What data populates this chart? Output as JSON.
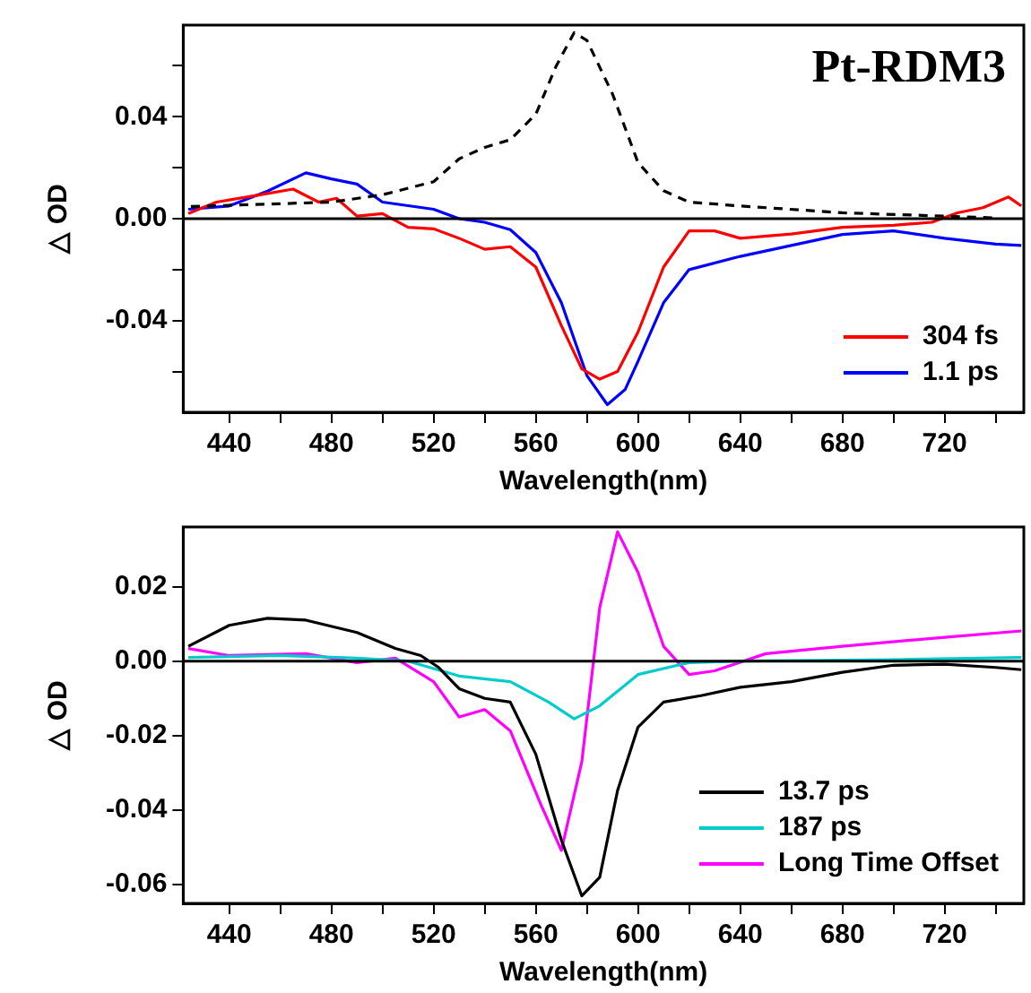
{
  "chart_data": [
    {
      "type": "line",
      "xlabel": "Wavelength(nm)",
      "ylabel": "△ OD",
      "annotations": [
        "Pt-RDM3"
      ],
      "xlim": [
        422,
        751
      ],
      "ylim": [
        -0.076,
        0.076
      ],
      "xticks": [
        440,
        {
          "value": 460,
          "label": null
        },
        480,
        {
          "value": 500,
          "label": null
        },
        520,
        {
          "value": 540,
          "label": null
        },
        560,
        {
          "value": 580,
          "label": null
        },
        600,
        {
          "value": 620,
          "label": null
        },
        640,
        {
          "value": 660,
          "label": null
        },
        680,
        {
          "value": 700,
          "label": null
        },
        720,
        {
          "value": 740,
          "label": null
        }
      ],
      "yticks": [
        {
          "value": -0.06,
          "label": null
        },
        {
          "value": -0.04,
          "label": "-0.04"
        },
        {
          "value": -0.02,
          "label": null
        },
        {
          "value": 0,
          "label": "0.00"
        },
        {
          "value": 0.02,
          "label": null
        },
        {
          "value": 0.04,
          "label": "0.04"
        },
        {
          "value": 0.06,
          "label": null
        }
      ],
      "grid": false,
      "legend": "bottom right",
      "marker": "none",
      "ref_lines": [
        {
          "axis": "y",
          "value": 0,
          "color": "#000000"
        }
      ],
      "series": [
        {
          "color": "#000000",
          "line_style": "dashed",
          "x": [
            425,
            480,
            500,
            520,
            530,
            540,
            550,
            560,
            568,
            575,
            580,
            590,
            600,
            610,
            620,
            640,
            680,
            720,
            740
          ],
          "values": [
            0.0048,
            0.0065,
            0.0094,
            0.0145,
            0.0235,
            0.028,
            0.031,
            0.041,
            0.06,
            0.073,
            0.07,
            0.049,
            0.022,
            0.011,
            0.0065,
            0.005,
            0.0023,
            0.001,
            0.0003
          ]
        },
        {
          "name": "304 fs",
          "color": "#ff0000",
          "x": [
            424,
            435,
            450,
            465,
            475,
            482,
            490,
            500,
            510,
            520,
            530,
            540,
            550,
            560,
            570,
            578,
            585,
            592,
            600,
            610,
            620,
            630,
            640,
            660,
            680,
            700,
            715,
            725,
            735,
            745,
            750
          ],
          "values": [
            0.002,
            0.0065,
            0.009,
            0.0116,
            0.0065,
            0.008,
            0.001,
            0.002,
            -0.0034,
            -0.004,
            -0.0077,
            -0.012,
            -0.011,
            -0.019,
            -0.042,
            -0.059,
            -0.063,
            -0.06,
            -0.0445,
            -0.019,
            -0.0048,
            -0.0048,
            -0.0077,
            -0.006,
            -0.0034,
            -0.0026,
            -0.0014,
            0.0023,
            0.0043,
            0.0085,
            0.005
          ]
        },
        {
          "name": "1.1 ps",
          "color": "#0000ff",
          "x": [
            424,
            440,
            455,
            470,
            480,
            490,
            500,
            520,
            530,
            540,
            550,
            560,
            570,
            580,
            588,
            595,
            600,
            610,
            620,
            640,
            660,
            680,
            700,
            720,
            740,
            750
          ],
          "values": [
            0.0037,
            0.005,
            0.0108,
            0.018,
            0.0156,
            0.0136,
            0.0065,
            0.0037,
            0,
            -0.0014,
            -0.0043,
            -0.0133,
            -0.033,
            -0.0616,
            -0.073,
            -0.067,
            -0.056,
            -0.033,
            -0.02,
            -0.0148,
            -0.0105,
            -0.0062,
            -0.0048,
            -0.0077,
            -0.01,
            -0.0105
          ]
        }
      ]
    },
    {
      "type": "line",
      "xlabel": "Wavelength(nm)",
      "ylabel": "△ OD",
      "xlim": [
        422,
        751
      ],
      "ylim": [
        -0.065,
        0.036
      ],
      "xticks": [
        440,
        {
          "value": 460,
          "label": null
        },
        480,
        {
          "value": 500,
          "label": null
        },
        520,
        {
          "value": 540,
          "label": null
        },
        560,
        {
          "value": 580,
          "label": null
        },
        600,
        {
          "value": 620,
          "label": null
        },
        640,
        {
          "value": 660,
          "label": null
        },
        680,
        {
          "value": 700,
          "label": null
        },
        720,
        {
          "value": 740,
          "label": null
        }
      ],
      "yticks": [
        {
          "value": -0.06,
          "label": "-0.06"
        },
        {
          "value": -0.04,
          "label": "-0.04"
        },
        {
          "value": -0.02,
          "label": "-0.02"
        },
        {
          "value": 0,
          "label": "0.00"
        },
        {
          "value": 0.02,
          "label": "0.02"
        }
      ],
      "grid": false,
      "legend": "bottom right",
      "marker": "none",
      "ref_lines": [
        {
          "axis": "y",
          "value": 0,
          "color": "#000000"
        }
      ],
      "series": [
        {
          "name": "13.7 ps",
          "color": "#000000",
          "x": [
            424,
            440,
            455,
            470,
            490,
            505,
            515,
            522,
            530,
            540,
            550,
            560,
            570,
            578,
            585,
            592,
            600,
            610,
            625,
            640,
            660,
            680,
            700,
            720,
            740,
            750
          ],
          "values": [
            0.004,
            0.0096,
            0.0115,
            0.011,
            0.0077,
            0.0034,
            0.0015,
            -0.0017,
            -0.0074,
            -0.01,
            -0.011,
            -0.025,
            -0.048,
            -0.063,
            -0.058,
            -0.0347,
            -0.0177,
            -0.011,
            -0.0092,
            -0.007,
            -0.0055,
            -0.003,
            -0.0011,
            -0.0008,
            -0.0017,
            -0.0023
          ]
        },
        {
          "name": "187 ps",
          "color": "#00cccc",
          "x": [
            424,
            460,
            490,
            510,
            530,
            550,
            565,
            575,
            585,
            600,
            620,
            640,
            700,
            750
          ],
          "values": [
            0.001,
            0.0015,
            0.0008,
            0,
            -0.004,
            -0.0055,
            -0.011,
            -0.0155,
            -0.012,
            -0.0036,
            -0.0004,
            0,
            0.0004,
            0.001
          ]
        },
        {
          "name": "Long Time Offset",
          "color": "#ff00ff",
          "x": [
            424,
            440,
            470,
            490,
            505,
            520,
            530,
            540,
            550,
            562,
            570,
            578,
            585,
            592,
            600,
            610,
            620,
            630,
            650,
            680,
            720,
            750
          ],
          "values": [
            0.0034,
            0.0015,
            0.002,
            -0.0004,
            0.0008,
            -0.0055,
            -0.015,
            -0.013,
            -0.0187,
            -0.0385,
            -0.0508,
            -0.027,
            0.0143,
            0.0347,
            0.0238,
            0.004,
            -0.0036,
            -0.0026,
            0.002,
            0.004,
            0.0064,
            0.0081
          ]
        }
      ]
    }
  ]
}
